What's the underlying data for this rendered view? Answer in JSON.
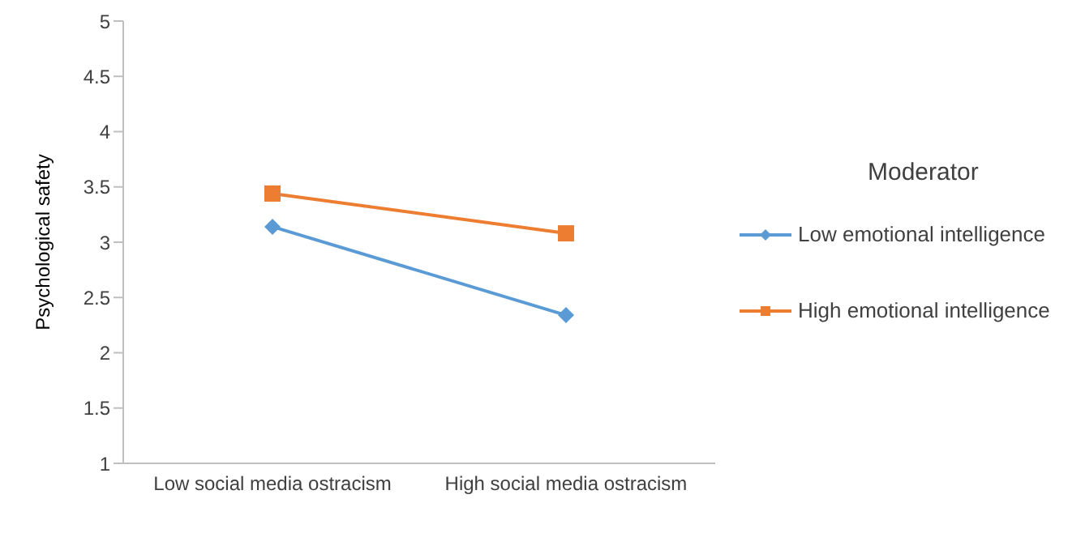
{
  "chart_data": {
    "type": "line",
    "ylabel": "Psychological safety",
    "legend_title": "Moderator",
    "categories": [
      "Low social media ostracism",
      "High social media ostracism"
    ],
    "series": [
      {
        "name": "Low emotional intelligence",
        "color": "#5b9bd5",
        "values": [
          3.14,
          2.34
        ],
        "marker": "diamond"
      },
      {
        "name": "High emotional intelligence",
        "color": "#ed7d31",
        "values": [
          3.44,
          3.08
        ],
        "marker": "square"
      }
    ],
    "ylim": [
      1,
      5
    ],
    "yticks": [
      1,
      1.5,
      2,
      2.5,
      3,
      3.5,
      4,
      4.5,
      5
    ],
    "grid": false,
    "legend": "right"
  }
}
